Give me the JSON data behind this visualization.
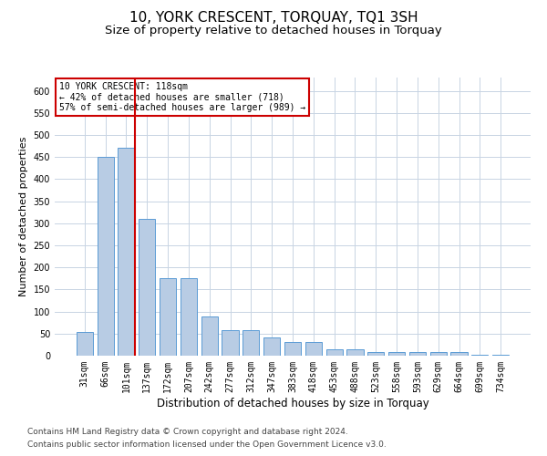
{
  "title": "10, YORK CRESCENT, TORQUAY, TQ1 3SH",
  "subtitle": "Size of property relative to detached houses in Torquay",
  "xlabel": "Distribution of detached houses by size in Torquay",
  "ylabel": "Number of detached properties",
  "footer_line1": "Contains HM Land Registry data © Crown copyright and database right 2024.",
  "footer_line2": "Contains public sector information licensed under the Open Government Licence v3.0.",
  "categories": [
    "31sqm",
    "66sqm",
    "101sqm",
    "137sqm",
    "172sqm",
    "207sqm",
    "242sqm",
    "277sqm",
    "312sqm",
    "347sqm",
    "383sqm",
    "418sqm",
    "453sqm",
    "488sqm",
    "523sqm",
    "558sqm",
    "593sqm",
    "629sqm",
    "664sqm",
    "699sqm",
    "734sqm"
  ],
  "values": [
    53,
    450,
    470,
    310,
    175,
    175,
    88,
    57,
    57,
    42,
    30,
    30,
    14,
    14,
    8,
    8,
    8,
    8,
    8,
    3,
    3
  ],
  "bar_color": "#b8cce4",
  "bar_edge_color": "#5b9bd5",
  "red_line_index": 2,
  "annotation_text_line1": "10 YORK CRESCENT: 118sqm",
  "annotation_text_line2": "← 42% of detached houses are smaller (718)",
  "annotation_text_line3": "57% of semi-detached houses are larger (989) →",
  "annotation_box_color": "#ffffff",
  "annotation_box_edge_color": "#cc0000",
  "red_line_color": "#cc0000",
  "grid_color": "#c8d4e3",
  "ylim_max": 630,
  "yticks": [
    0,
    50,
    100,
    150,
    200,
    250,
    300,
    350,
    400,
    450,
    500,
    550,
    600
  ],
  "background_color": "#ffffff",
  "title_fontsize": 11,
  "subtitle_fontsize": 9.5,
  "xlabel_fontsize": 8.5,
  "ylabel_fontsize": 8,
  "tick_fontsize": 7,
  "annotation_fontsize": 7,
  "footer_fontsize": 6.5
}
